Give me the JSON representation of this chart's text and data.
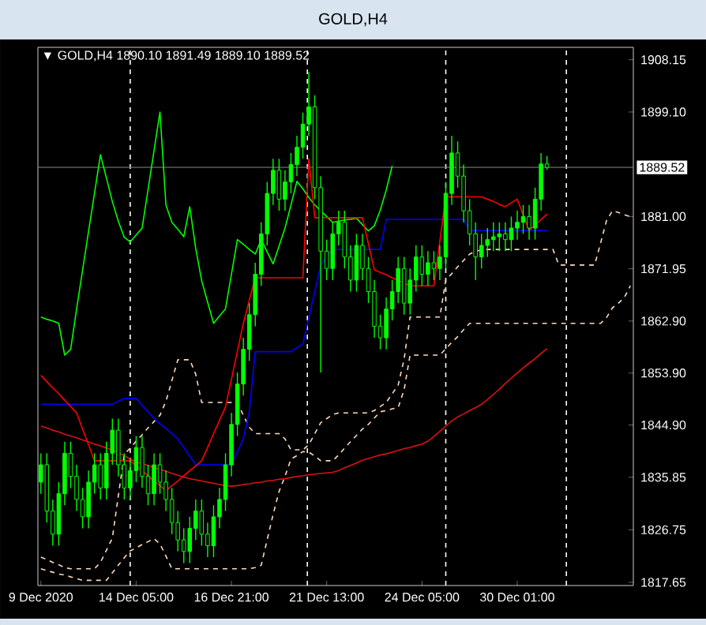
{
  "chart_data": {
    "type": "candlestick",
    "title": "GOLD,H4",
    "subtitle": "▼ GOLD,H4  1890.10 1891.49 1889.10 1889.52",
    "color": "#00ff00",
    "categories": [
      "9 Dec 2020",
      null,
      null,
      null,
      null,
      null,
      null,
      null,
      null,
      null,
      null,
      null,
      null,
      null,
      null,
      null,
      "14 Dec 05:00",
      null,
      null,
      null,
      null,
      null,
      null,
      null,
      null,
      null,
      null,
      null,
      null,
      null,
      null,
      null,
      "16 Dec 21:00",
      null,
      null,
      null,
      null,
      null,
      null,
      null,
      null,
      null,
      null,
      null,
      null,
      null,
      null,
      null,
      "21 Dec 13:00",
      null,
      null,
      null,
      null,
      null,
      null,
      null,
      null,
      null,
      null,
      null,
      null,
      null,
      null,
      null,
      "24 Dec 05:00",
      null,
      null,
      null,
      null,
      null,
      null,
      null,
      null,
      null,
      null,
      null,
      null,
      null,
      null,
      null,
      "30 Dec 01:00",
      null,
      null,
      null,
      null,
      null,
      null,
      null,
      null,
      null,
      null,
      null,
      null,
      null,
      null,
      null,
      null,
      null,
      null,
      null
    ],
    "ohlc": [
      [
        1835,
        1840,
        1833,
        1838
      ],
      [
        1838,
        1840,
        1828,
        1830
      ],
      [
        1830,
        1832,
        1824,
        1826
      ],
      [
        1826,
        1835,
        1824,
        1833
      ],
      [
        1833,
        1842,
        1831,
        1840
      ],
      [
        1840,
        1842,
        1834,
        1836
      ],
      [
        1836,
        1838,
        1830,
        1832
      ],
      [
        1832,
        1834,
        1827,
        1829
      ],
      [
        1829,
        1837,
        1827,
        1835
      ],
      [
        1835,
        1840,
        1833,
        1838
      ],
      [
        1838,
        1840,
        1832,
        1834
      ],
      [
        1834,
        1842,
        1832,
        1840
      ],
      [
        1840,
        1846,
        1838,
        1844
      ],
      [
        1844,
        1846,
        1836,
        1838
      ],
      [
        1838,
        1840,
        1832,
        1834
      ],
      [
        1834,
        1839,
        1832,
        1837
      ],
      [
        1837,
        1843,
        1835,
        1841
      ],
      [
        1841,
        1843,
        1834,
        1836
      ],
      [
        1836,
        1838,
        1831,
        1833
      ],
      [
        1833,
        1840,
        1831,
        1838
      ],
      [
        1838,
        1840,
        1833,
        1835
      ],
      [
        1835,
        1837,
        1830,
        1832
      ],
      [
        1832,
        1834,
        1826,
        1828
      ],
      [
        1828,
        1830,
        1823,
        1825
      ],
      [
        1825,
        1827,
        1821,
        1823
      ],
      [
        1823,
        1829,
        1821,
        1827
      ],
      [
        1827,
        1832,
        1825,
        1830
      ],
      [
        1830,
        1832,
        1824,
        1826
      ],
      [
        1826,
        1828,
        1822,
        1824
      ],
      [
        1824,
        1831,
        1822,
        1829
      ],
      [
        1829,
        1834,
        1827,
        1832
      ],
      [
        1832,
        1840,
        1830,
        1838
      ],
      [
        1838,
        1847,
        1836,
        1845
      ],
      [
        1845,
        1854,
        1843,
        1852
      ],
      [
        1852,
        1860,
        1850,
        1858
      ],
      [
        1858,
        1866,
        1856,
        1864
      ],
      [
        1864,
        1873,
        1862,
        1871
      ],
      [
        1871,
        1880,
        1869,
        1878
      ],
      [
        1878,
        1887,
        1876,
        1885
      ],
      [
        1885,
        1891,
        1883,
        1889
      ],
      [
        1889,
        1891,
        1882,
        1884
      ],
      [
        1884,
        1889,
        1882,
        1887
      ],
      [
        1887,
        1892,
        1885,
        1890
      ],
      [
        1890,
        1895,
        1888,
        1893
      ],
      [
        1893,
        1899,
        1891,
        1897
      ],
      [
        1897,
        1906,
        1895,
        1900
      ],
      [
        1900,
        1902,
        1884,
        1886
      ],
      [
        1886,
        1888,
        1854,
        1875
      ],
      [
        1875,
        1877,
        1870,
        1872
      ],
      [
        1872,
        1880,
        1870,
        1878
      ],
      [
        1878,
        1882,
        1876,
        1880
      ],
      [
        1880,
        1882,
        1872,
        1874
      ],
      [
        1874,
        1876,
        1868,
        1870
      ],
      [
        1870,
        1878,
        1868,
        1876
      ],
      [
        1876,
        1878,
        1870,
        1872
      ],
      [
        1872,
        1874,
        1866,
        1868
      ],
      [
        1868,
        1870,
        1860,
        1862
      ],
      [
        1862,
        1864,
        1858,
        1860
      ],
      [
        1860,
        1867,
        1858,
        1865
      ],
      [
        1865,
        1870,
        1863,
        1868
      ],
      [
        1868,
        1874,
        1866,
        1872
      ],
      [
        1872,
        1874,
        1864,
        1866
      ],
      [
        1866,
        1872,
        1864,
        1870
      ],
      [
        1870,
        1876,
        1868,
        1874
      ],
      [
        1874,
        1876,
        1869,
        1871
      ],
      [
        1871,
        1875,
        1869,
        1873
      ],
      [
        1873,
        1875,
        1870,
        1872
      ],
      [
        1872,
        1876,
        1870,
        1874
      ],
      [
        1874,
        1887,
        1872,
        1885
      ],
      [
        1885,
        1895,
        1883,
        1892
      ],
      [
        1892,
        1894,
        1886,
        1888
      ],
      [
        1888,
        1890,
        1880,
        1882
      ],
      [
        1882,
        1884,
        1876,
        1878
      ],
      [
        1878,
        1880,
        1870,
        1874
      ],
      [
        1874,
        1878,
        1872,
        1876
      ],
      [
        1876,
        1879,
        1874,
        1877
      ],
      [
        1877,
        1880,
        1875,
        1877.5
      ],
      [
        1877.5,
        1880,
        1875,
        1878
      ],
      [
        1878,
        1880,
        1875,
        1877
      ],
      [
        1877,
        1881,
        1875,
        1879
      ],
      [
        1879,
        1882,
        1877,
        1880
      ],
      [
        1880,
        1883,
        1878,
        1881
      ],
      [
        1881,
        1883,
        1877,
        1879
      ],
      [
        1879,
        1886,
        1877,
        1884
      ],
      [
        1884,
        1892,
        1882,
        1890.1
      ],
      [
        1890.1,
        1891.49,
        1889.1,
        1889.52
      ],
      null,
      null,
      null,
      null,
      null,
      null,
      null,
      null,
      null,
      null,
      null,
      null,
      null,
      null
    ],
    "series": [
      {
        "type": "line",
        "color": "#ffdab9",
        "line_style": "dashed",
        "values": [
          1822,
          1821.6,
          1821.1,
          1820.7,
          1820.2,
          1820,
          1820,
          1820,
          1820,
          1820,
          1821.1,
          1823.2,
          1825.3,
          1832.6,
          1839.8,
          1840.9,
          1842.1,
          1843.2,
          1844.4,
          1845.5,
          1846.6,
          1849,
          1852.6,
          1856.2,
          1856.2,
          1856.2,
          1853.7,
          1848.8,
          1848.8,
          1848.8,
          1848.8,
          1848.8,
          1848.8,
          1848.8,
          1846.6,
          1844.5,
          1843.4,
          1843.4,
          1843.4,
          1843.4,
          1843.4,
          1842.5,
          1840.6,
          1840.6,
          1840.6,
          1841.5,
          1843.4,
          1845.3,
          1846,
          1846.7,
          1847,
          1847,
          1847,
          1847,
          1847,
          1847,
          1847.4,
          1848.1,
          1848.8,
          1850.3,
          1851.8,
          1856.3,
          1863.6,
          1863.6,
          1863.6,
          1863.6,
          1863.6,
          1863.6,
          1870,
          1871.1,
          1872.3,
          1873.4,
          1874.5,
          1875,
          1875.2,
          1875.3,
          1875.3,
          1875.3,
          1875.3,
          1875.3,
          1875.3,
          1875.3,
          1875.3,
          1875.3,
          1875.3,
          1875.3,
          1875.3,
          1872.6,
          1872.6,
          1872.6,
          1872.6,
          1872.6,
          1872.6,
          1872.6,
          1876.4,
          1880.3,
          1882,
          1881.7,
          1881.3,
          1881
        ]
      },
      {
        "type": "line",
        "color": "#ffdab9",
        "line_style": "dashed",
        "values": [
          1820,
          1819.7,
          1819.4,
          1819.1,
          1818.9,
          1818.6,
          1818.3,
          1818,
          1818,
          1818,
          1818,
          1818,
          1819.3,
          1820.6,
          1821.9,
          1823.1,
          1823.6,
          1824.2,
          1824.7,
          1825.2,
          1824.3,
          1822.2,
          1820,
          1820,
          1820,
          1820,
          1820,
          1820,
          1820,
          1820,
          1820,
          1820,
          1820,
          1820,
          1820,
          1820,
          1820.2,
          1820.6,
          1825,
          1829.4,
          1833.4,
          1836,
          1839,
          1839.6,
          1840.3,
          1840.2,
          1839.5,
          1838.7,
          1838.7,
          1838.7,
          1839.7,
          1840.9,
          1842,
          1843.1,
          1844.2,
          1845,
          1846.1,
          1847.2,
          1847.4,
          1847.7,
          1847.9,
          1851,
          1857,
          1857,
          1857,
          1857,
          1857,
          1857,
          1858.1,
          1859.2,
          1860.2,
          1861.4,
          1862.5,
          1862.5,
          1862.5,
          1862.5,
          1862.5,
          1862.5,
          1862.5,
          1862.5,
          1862.5,
          1862.5,
          1862.5,
          1862.5,
          1862.5,
          1862.5,
          1862.5,
          1862.5,
          1862.5,
          1862.5,
          1862.5,
          1862.5,
          1862.5,
          1862.5,
          1862.5,
          1863.5,
          1865.2,
          1866,
          1867,
          1869
        ]
      },
      {
        "type": "line",
        "color": "#dd1111",
        "values": [
          1844.7,
          1844.4,
          1844,
          1843.7,
          1843.3,
          1843,
          1842.7,
          1842.3,
          1842,
          1841.6,
          1841.3,
          1840.9,
          1840.6,
          1840.1,
          1839.6,
          1839,
          1838.5,
          1838.2,
          1837.9,
          1837.5,
          1837.2,
          1836.9,
          1836.5,
          1836.2,
          1835.9,
          1835.6,
          1835.4,
          1835.2,
          1835,
          1834.8,
          1834.6,
          1834.4,
          1834.3,
          1834.4,
          1834.6,
          1834.7,
          1834.9,
          1835,
          1835.2,
          1835.3,
          1835.5,
          1835.6,
          1835.8,
          1836,
          1836.1,
          1836.3,
          1836.4,
          1836.5,
          1836.6,
          1836.7,
          1837,
          1837.5,
          1837.9,
          1838.3,
          1838.8,
          1839.1,
          1839.4,
          1839.7,
          1839.9,
          1840.2,
          1840.5,
          1840.8,
          1841,
          1841.3,
          1841.6,
          1842.1,
          1842.9,
          1843.8,
          1844.7,
          1845.6,
          1846.3,
          1846.8,
          1847.4,
          1847.9,
          1848.5,
          1849.3,
          1850.2,
          1851.1,
          1852.1,
          1853,
          1853.9,
          1854.8,
          1855.6,
          1856.4,
          1857.3,
          1858.1,
          null,
          null,
          null,
          null,
          null,
          null,
          null,
          null,
          null,
          null,
          null,
          null,
          null,
          null
        ]
      },
      {
        "type": "line",
        "color": "#00ff00",
        "values": [
          1863.6,
          1863.2,
          1862.9,
          1862.5,
          1857,
          1858,
          1865,
          1871.7,
          1878.4,
          1885,
          1891.7,
          1887.7,
          1883.6,
          1880.2,
          1877.4,
          1876.6,
          1877.8,
          1879,
          1885.7,
          1892.4,
          1899.1,
          1883,
          1880,
          1878.8,
          1877.5,
          1882.7,
          1875.5,
          1869.9,
          1866.2,
          1862.5,
          1863.8,
          1865,
          1871,
          1877,
          1876.2,
          1875.3,
          1874.5,
          1877,
          1874.9,
          1872.8,
          1875.9,
          1879,
          1883,
          1887.1,
          1885.8,
          1884.3,
          1883,
          1882,
          1881,
          1880,
          1880.2,
          1880.4,
          1880.5,
          1880.7,
          1879.6,
          1878.5,
          1879.4,
          1882.1,
          1885.6,
          1889.8,
          null,
          null,
          null,
          null,
          null,
          null,
          null,
          null,
          null,
          null,
          null,
          null,
          null,
          null,
          null,
          null,
          null,
          null,
          null,
          null,
          null,
          null,
          null,
          null,
          null,
          null,
          null,
          null,
          null,
          null,
          null,
          null,
          null,
          null,
          null,
          null,
          null,
          null,
          null,
          null
        ]
      },
      {
        "type": "line",
        "color": "#0000ff",
        "values": [
          1848.5,
          1848.5,
          1848.5,
          1848.5,
          1848.5,
          1848.5,
          1848.5,
          1848.5,
          1848.5,
          1848.5,
          1848.5,
          1848.5,
          1848.5,
          1849,
          1849.5,
          1849.5,
          1849.5,
          1848.3,
          1847.2,
          1846,
          1845.1,
          1844.3,
          1843.4,
          1842.5,
          1841,
          1839.5,
          1838,
          1838,
          1838,
          1838,
          1838,
          1838,
          1838,
          1840.3,
          1842.5,
          1847.2,
          1857.6,
          1857.6,
          1857.6,
          1857.6,
          1857.6,
          1857.6,
          1857.6,
          1858.3,
          1858.9,
          1863.5,
          1868,
          1872.6,
          1874,
          1875.3,
          1875.3,
          1875.3,
          1875.3,
          1875.3,
          1875.3,
          1875.3,
          1875.3,
          1875.3,
          1880.5,
          1880.5,
          1880.5,
          1880.5,
          1880.5,
          1880.5,
          1880.5,
          1880.5,
          1880.5,
          1880.5,
          1880.5,
          1880.5,
          1880.5,
          1880.5,
          1878.6,
          1878.6,
          1878.6,
          1878.6,
          1878.6,
          1878.6,
          1878.6,
          1878.6,
          1878.6,
          1878.6,
          1878.6,
          1878.6,
          1878.6,
          1878.6,
          null,
          null,
          null,
          null,
          null,
          null,
          null,
          null,
          null,
          null,
          null,
          null,
          null,
          null
        ]
      },
      {
        "type": "line",
        "color": "#ff0000",
        "values": [
          1853.5,
          1852.4,
          1851.3,
          1850.3,
          1849.2,
          1848.1,
          1847,
          1844.2,
          1841.5,
          1838.7,
          1838.7,
          1838.7,
          1838.7,
          1838.7,
          1838.7,
          1838.7,
          1837.8,
          1837,
          1836.1,
          1835.2,
          1834.4,
          1833.5,
          1834.4,
          1835.2,
          1836.1,
          1837,
          1837.8,
          1838.7,
          1841,
          1843.4,
          1845.7,
          1848,
          1852.8,
          1857.7,
          1862.5,
          1866.5,
          1870.4,
          1870.4,
          1870.4,
          1870.4,
          1870.4,
          1870.4,
          1870.4,
          1870.4,
          1870.4,
          1891,
          1880.8,
          1880.8,
          1880.8,
          1880.8,
          1880.8,
          1880.8,
          1880.8,
          1880.8,
          1880.8,
          1876.3,
          1871.8,
          1871.3,
          1870.9,
          1870.4,
          1869.9,
          1869.5,
          1869,
          1869,
          1869,
          1869,
          1869,
          1876.7,
          1884.4,
          1884.4,
          1884.4,
          1884.4,
          1884.4,
          1884.4,
          1884.4,
          1884,
          1883.6,
          1883.1,
          1882.7,
          1883.4,
          1884,
          1881.3,
          1878.6,
          1879.5,
          1880.5,
          1881.4,
          null,
          null,
          null,
          null,
          null,
          null,
          null,
          null,
          null,
          null,
          null,
          null,
          null,
          null
        ]
      }
    ],
    "ylim": [
      1817.1,
      1910.3
    ],
    "yticks": [
      {
        "value": 1908.15,
        "label": "1908.15"
      },
      {
        "value": 1899.1,
        "label": "1899.10"
      },
      {
        "value": 1881.0,
        "label": "1881.00"
      },
      {
        "value": 1871.95,
        "label": "1871.95"
      },
      {
        "value": 1862.9,
        "label": "1862.90"
      },
      {
        "value": 1853.9,
        "label": "1853.90"
      },
      {
        "value": 1844.9,
        "label": "1844.90"
      },
      {
        "value": 1835.85,
        "label": "1835.85"
      },
      {
        "value": 1826.75,
        "label": "1826.75"
      },
      {
        "value": 1817.65,
        "label": "1817.65"
      }
    ],
    "ref_lines": [
      {
        "axis": "y",
        "value": 1889.52,
        "label": "1889.52",
        "color": "#808080"
      }
    ]
  }
}
